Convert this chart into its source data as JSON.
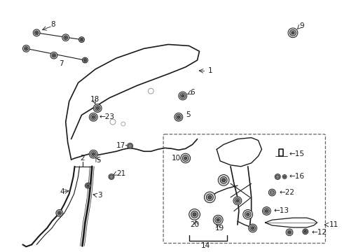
{
  "background_color": "#ffffff",
  "figure_width": 4.89,
  "figure_height": 3.6,
  "dpi": 100,
  "color": "#1a1a1a"
}
